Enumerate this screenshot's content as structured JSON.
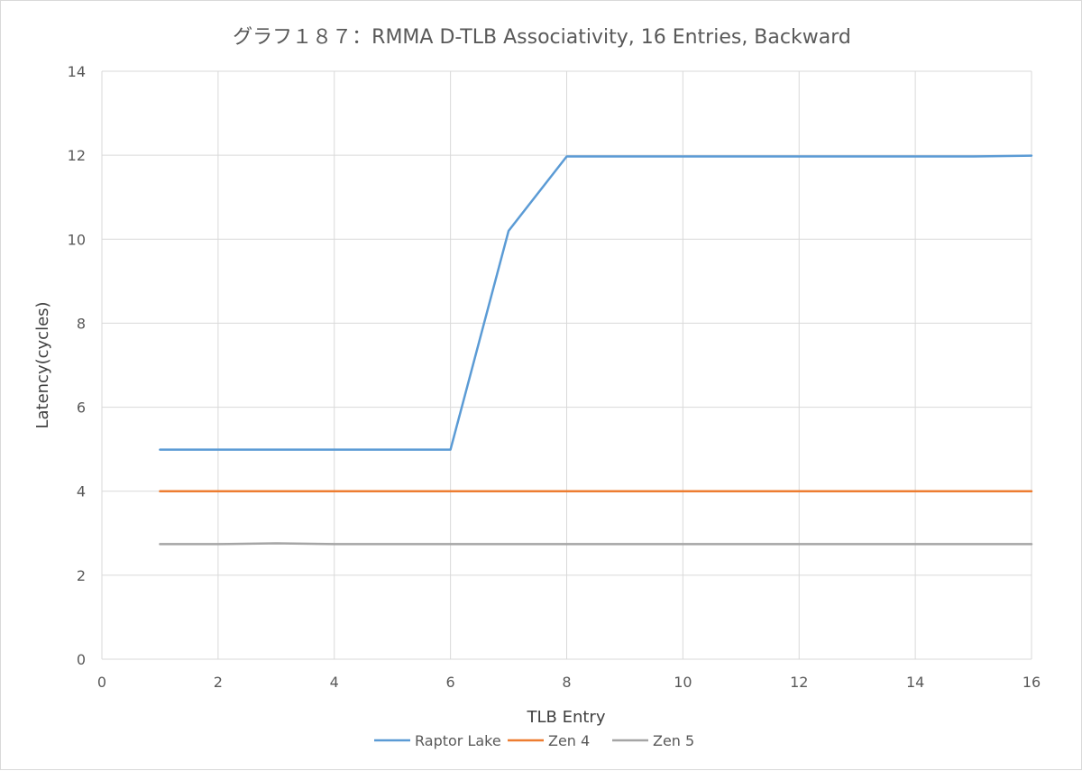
{
  "chart_data": {
    "type": "line",
    "title": "グラフ１８７：RMMA D-TLB Associativity, 16 Entries, Backward",
    "xlabel": "TLB Entry",
    "ylabel": "Latency(cycles)",
    "xlim": [
      0,
      16
    ],
    "ylim": [
      0,
      14
    ],
    "xticks": [
      "0",
      "2",
      "4",
      "6",
      "8",
      "10",
      "12",
      "14",
      "16"
    ],
    "yticks": [
      "0",
      "2",
      "4",
      "6",
      "8",
      "10",
      "12",
      "14"
    ],
    "grid": true,
    "legend_position": "bottom",
    "x": [
      1,
      2,
      3,
      4,
      5,
      6,
      7,
      8,
      9,
      10,
      11,
      12,
      13,
      14,
      15,
      16
    ],
    "series": [
      {
        "name": "Raptor Lake",
        "color": "#5b9bd5",
        "values": [
          4.99,
          4.99,
          4.99,
          4.99,
          4.99,
          4.99,
          10.2,
          11.97,
          11.97,
          11.97,
          11.97,
          11.97,
          11.97,
          11.97,
          11.97,
          11.99
        ]
      },
      {
        "name": "Zen 4",
        "color": "#ed7d31",
        "values": [
          4.0,
          4.0,
          4.0,
          4.0,
          4.0,
          4.0,
          4.0,
          4.0,
          4.0,
          4.0,
          4.0,
          4.0,
          4.0,
          4.0,
          4.0,
          4.0
        ]
      },
      {
        "name": "Zen 5",
        "color": "#a5a5a5",
        "values": [
          2.74,
          2.74,
          2.76,
          2.74,
          2.74,
          2.74,
          2.74,
          2.74,
          2.74,
          2.74,
          2.74,
          2.74,
          2.74,
          2.74,
          2.74,
          2.74
        ]
      }
    ]
  }
}
